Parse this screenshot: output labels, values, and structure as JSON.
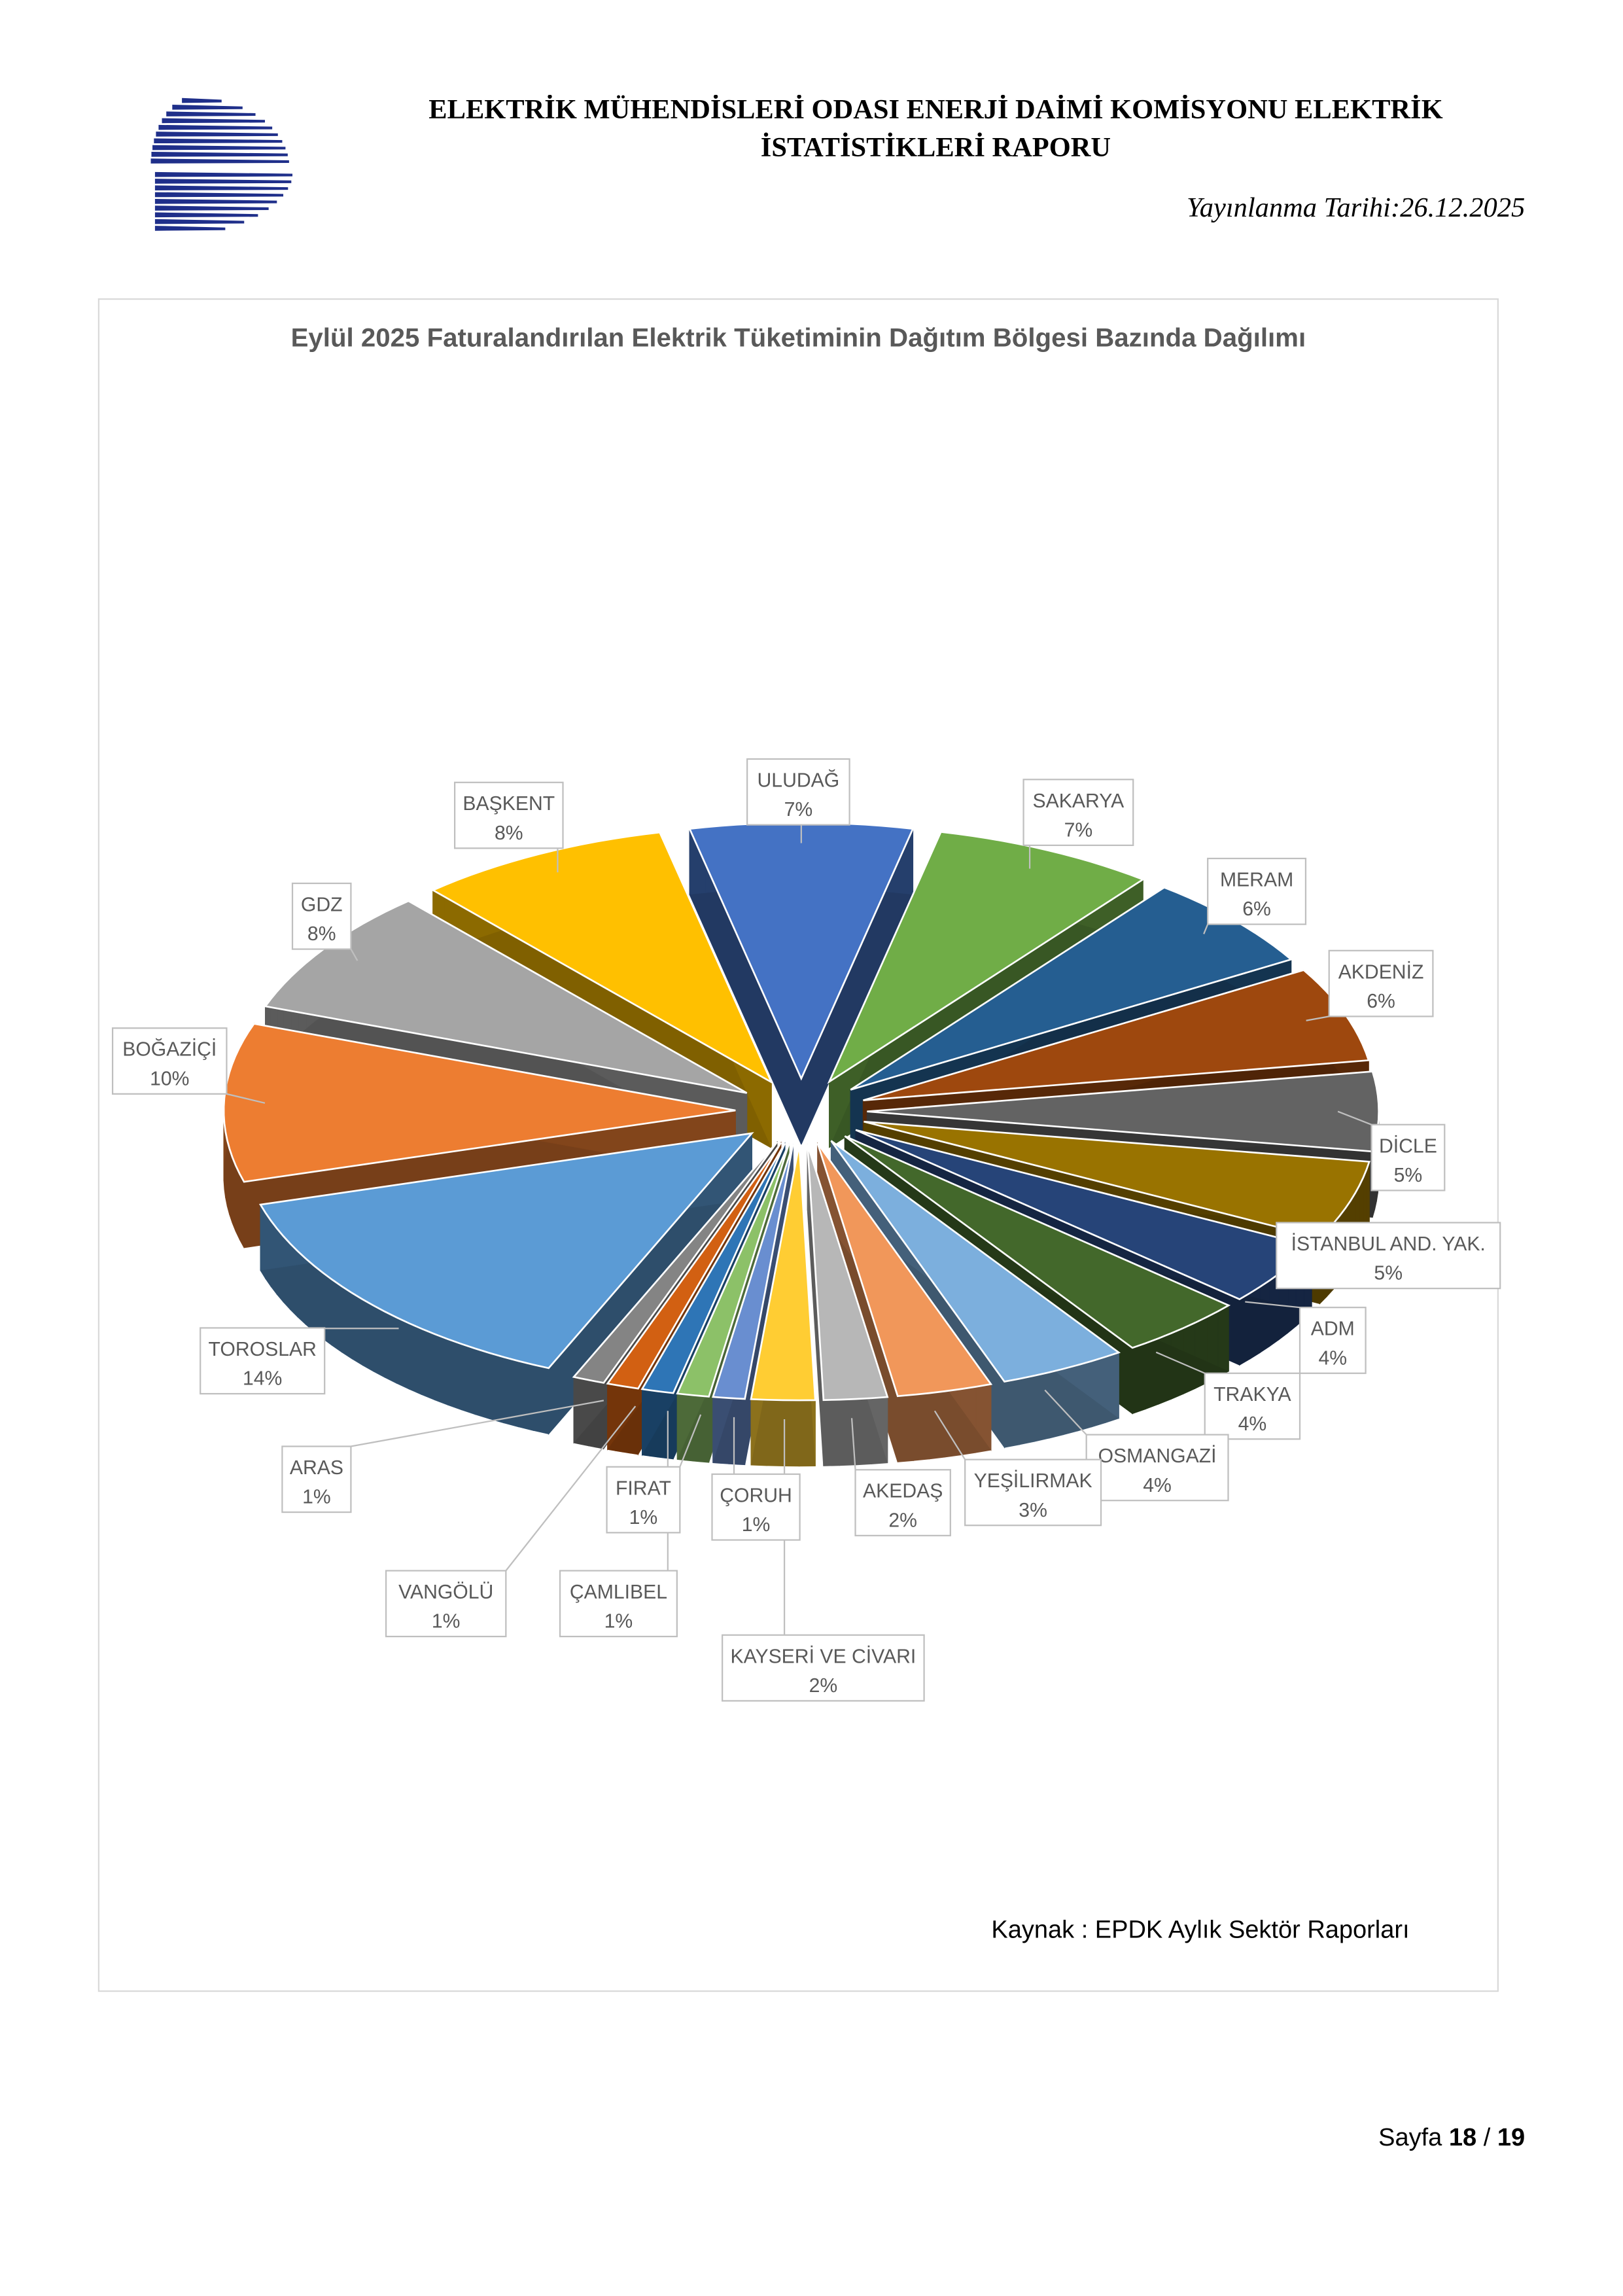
{
  "header": {
    "title_line1": "ELEKTRİK MÜHENDİSLERİ ODASI ENERJİ DAİMİ KOMİSYONU ELEKTRİK",
    "title_line2": "İSTATİSTİKLERİ RAPORU",
    "date": "Yayınlanma Tarihi:26.12.2025",
    "logo_color": "#1f2f8a"
  },
  "chart_data": {
    "type": "pie",
    "style": "3d-exploded",
    "title": "Eylül 2025 Faturalandırılan Elektrik Tüketiminin Dağıtım Bölgesi Bazında Dağılımı",
    "unit": "%",
    "categories": [
      "ULUDAĞ",
      "SAKARYA",
      "MERAM",
      "AKDENİZ",
      "DİCLE",
      "İSTANBUL AND. YAK.",
      "ADM",
      "TRAKYA",
      "OSMANGAZİ",
      "YEŞİLIRMAK",
      "AKEDAŞ",
      "KAYSERİ VE CİVARI",
      "ÇORUH",
      "FIRAT",
      "ÇAMLIBEL",
      "VANGÖLÜ",
      "ARAS",
      "TOROSLAR",
      "BOĞAZİÇİ",
      "GDZ",
      "BAŞKENT"
    ],
    "values": [
      7,
      7,
      6,
      6,
      5,
      5,
      4,
      4,
      4,
      3,
      2,
      2,
      1,
      1,
      1,
      1,
      1,
      14,
      10,
      8,
      8
    ],
    "labels": [
      "7%",
      "7%",
      "6%",
      "6%",
      "5%",
      "5%",
      "4%",
      "4%",
      "4%",
      "3%",
      "2%",
      "2%",
      "1%",
      "1%",
      "1%",
      "1%",
      "1%",
      "14%",
      "10%",
      "8%",
      "8%"
    ],
    "colors": [
      "#4472C4",
      "#70AD47",
      "#255E91",
      "#9E480E",
      "#636363",
      "#997300",
      "#264478",
      "#43682B",
      "#0F1F3D",
      "#7CAFDD",
      "#F1975A",
      "#B7B7B7",
      "#FFCD33",
      "#698ED0",
      "#8CC168",
      "#2E75B6",
      "#D26012",
      "#848484",
      "#5B9BD5",
      "#ED7D31",
      "#A5A5A5",
      "#FFC000"
    ],
    "legend": "none"
  },
  "source": "Kaynak : EPDK Aylık Sektör Raporları",
  "footer": {
    "prefix": "Sayfa",
    "page": "18",
    "sep": "/",
    "total": "19"
  }
}
